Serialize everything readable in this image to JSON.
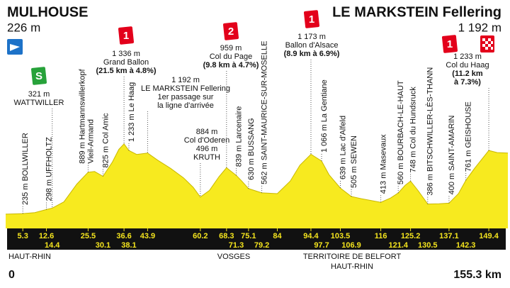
{
  "chart_data": {
    "type": "area",
    "start": "MULHOUSE",
    "start_altitude": "226 m",
    "finish": "LE MARKSTEIN Fellering",
    "finish_altitude": "1 192 m",
    "color": "#f7ea1f",
    "xlim": [
      0,
      155.3
    ],
    "xticks": [
      0,
      {
        "value": 155.3,
        "label": "155.3 km"
      }
    ],
    "ylim": [
      0,
      1700
    ],
    "x": [
      0,
      3,
      5.3,
      9,
      12.6,
      14.4,
      18,
      22,
      25.5,
      27.5,
      30.1,
      33,
      35,
      36.6,
      38.1,
      40.5,
      43.9,
      47,
      51,
      55,
      58,
      60.2,
      63,
      66,
      68.3,
      71.3,
      73,
      75.1,
      79.2,
      84,
      88,
      91,
      94.4,
      97.7,
      100,
      103.5,
      106.9,
      110,
      116,
      119,
      121.4,
      123.5,
      125.2,
      127.5,
      130.5,
      134,
      137.1,
      140,
      142.3,
      145,
      149.4,
      152,
      155.3
    ],
    "values": [
      226,
      230,
      235,
      250,
      298,
      321,
      420,
      700,
      889,
      900,
      825,
      1050,
      1250,
      1336,
      1233,
      1170,
      1192,
      1080,
      950,
      800,
      650,
      496,
      600,
      820,
      959,
      839,
      750,
      630,
      562,
      550,
      750,
      1000,
      1173,
      1066,
      850,
      639,
      505,
      470,
      413,
      480,
      560,
      680,
      748,
      600,
      386,
      390,
      400,
      550,
      761,
      950,
      1233,
      1200,
      1192
    ],
    "km_markers_top": [
      5.3,
      12.6,
      25.5,
      36.6,
      43.9,
      60.2,
      68.3,
      75.1,
      84,
      94.4,
      103.5,
      116,
      125.2,
      137.1,
      149.4
    ],
    "km_markers_bottom": [
      14.4,
      30.1,
      38.1,
      71.3,
      79.2,
      97.7,
      106.9,
      121.4,
      130.5,
      142.3
    ],
    "regions": [
      "HAUT-RHIN",
      "VOSGES",
      "TERRITOIRE DE BELFORT",
      "HAUT-RHIN"
    ],
    "labels": [
      {
        "km": 14.4,
        "badge": "S",
        "lines": [
          "321 m",
          "WATTWILLER"
        ]
      },
      {
        "km": 36.6,
        "badge": "1",
        "lines": [
          "1 336 m",
          "Grand Ballon"
        ],
        "detail": [
          "(21.5 km à 4.8%)"
        ]
      },
      {
        "km": 43.9,
        "lines": [
          "1 192 m",
          "LE MARKSTEIN Fellering",
          "1er passage sur",
          "la ligne d'arrivée"
        ]
      },
      {
        "km": 60.2,
        "lines": [
          "884 m",
          "Col d'Oderen",
          "496 m",
          "KRUTH"
        ]
      },
      {
        "km": 68.3,
        "badge": "2",
        "lines": [
          "959 m",
          "Col du Page"
        ],
        "detail": [
          "(9.8 km à 4.7%)"
        ]
      },
      {
        "km": 94.4,
        "badge": "1",
        "lines": [
          "1 173 m",
          "Ballon d'Alsace"
        ],
        "detail": [
          "(8.9 km à 6.9%)"
        ]
      },
      {
        "km": 149.4,
        "badge": "1",
        "lines": [
          "1 233 m",
          "Col du Haag"
        ],
        "detail": [
          "(11.2 km",
          "à 7.3%)"
        ]
      }
    ],
    "places": [
      {
        "km": 5.3,
        "lines": [
          "235 m BOLLWILLER"
        ]
      },
      {
        "km": 12.6,
        "lines": [
          "298 m UFFHOLTZ"
        ]
      },
      {
        "km": 25.5,
        "lines": [
          "889 m Hartmannswillerkopf",
          "Vieil-Armand"
        ]
      },
      {
        "km": 30.1,
        "lines": [
          "825 m Col Amic"
        ]
      },
      {
        "km": 38.1,
        "lines": [
          "1 233 m Le Haag"
        ]
      },
      {
        "km": 71.3,
        "lines": [
          "839 m Larcenaire"
        ]
      },
      {
        "km": 75.1,
        "lines": [
          "630 m BUSSANG"
        ]
      },
      {
        "km": 79.2,
        "lines": [
          "562 m SAINT-MAURICE-SUR-MOSELLE"
        ]
      },
      {
        "km": 97.7,
        "lines": [
          "1 066 m La Gentiane"
        ]
      },
      {
        "km": 103.5,
        "lines": [
          "639 m Lac d'Alfeld"
        ]
      },
      {
        "km": 106.9,
        "lines": [
          "505 m SEWEN"
        ]
      },
      {
        "km": 116,
        "lines": [
          "413 m Masevaux"
        ]
      },
      {
        "km": 121.4,
        "lines": [
          "560 m BOURBACH-LE-HAUT"
        ]
      },
      {
        "km": 125.2,
        "lines": [
          "748 m Col du Hundsruck"
        ]
      },
      {
        "km": 130.5,
        "lines": [
          "386 m BITSCHWILLER-LÈS-THANN"
        ]
      },
      {
        "km": 137.1,
        "lines": [
          "400 m SAINT-AMARIN"
        ]
      },
      {
        "km": 142.3,
        "lines": [
          "761 m GEISHOUSE"
        ]
      }
    ]
  }
}
